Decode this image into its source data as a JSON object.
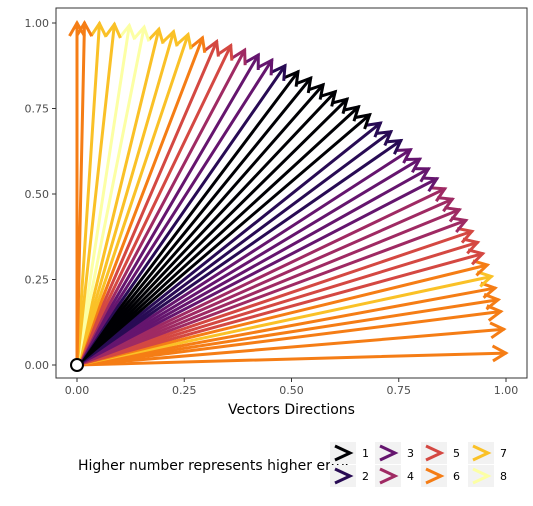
{
  "chart_data": {
    "type": "vector-field",
    "xlabel": "Vectors Directions",
    "ylabel": "",
    "xlim": [
      -0.03,
      1.03
    ],
    "ylim": [
      -0.03,
      1.03
    ],
    "x_ticks": [
      "0.00",
      "0.25",
      "0.50",
      "0.75",
      "1.00"
    ],
    "y_ticks": [
      "0.00",
      "0.25",
      "0.50",
      "0.75",
      "1.00"
    ],
    "origin": [
      0,
      0
    ],
    "arrows_angles_deg": [
      2,
      6,
      9,
      11,
      13,
      15,
      17,
      19,
      21,
      23,
      25,
      27,
      29,
      31,
      33,
      35,
      37,
      39,
      41,
      43,
      45,
      47,
      49,
      51,
      53,
      55,
      57,
      59,
      61,
      63,
      65,
      67,
      69,
      71,
      73,
      75,
      77,
      79,
      81,
      83,
      85,
      87,
      89,
      90
    ],
    "arrows_error": [
      6,
      6,
      6,
      6,
      6,
      7,
      6,
      5,
      5,
      5,
      4,
      4,
      4,
      4,
      3,
      3,
      3,
      3,
      2,
      2,
      2,
      1,
      1,
      1,
      1,
      1,
      1,
      1,
      2,
      3,
      3,
      4,
      5,
      5,
      6,
      7,
      7,
      7,
      8,
      8,
      7,
      7,
      6,
      6
    ],
    "legend_title": "Higher number represents higher error",
    "legend_labels": [
      "1",
      "2",
      "3",
      "4",
      "5",
      "6",
      "7",
      "8"
    ],
    "colors": [
      "#000004",
      "#280B54",
      "#65156E",
      "#9F2A63",
      "#D44842",
      "#F57D15",
      "#FAC127",
      "#FCFFA4"
    ],
    "grid": false,
    "legend_position": "bottom"
  }
}
